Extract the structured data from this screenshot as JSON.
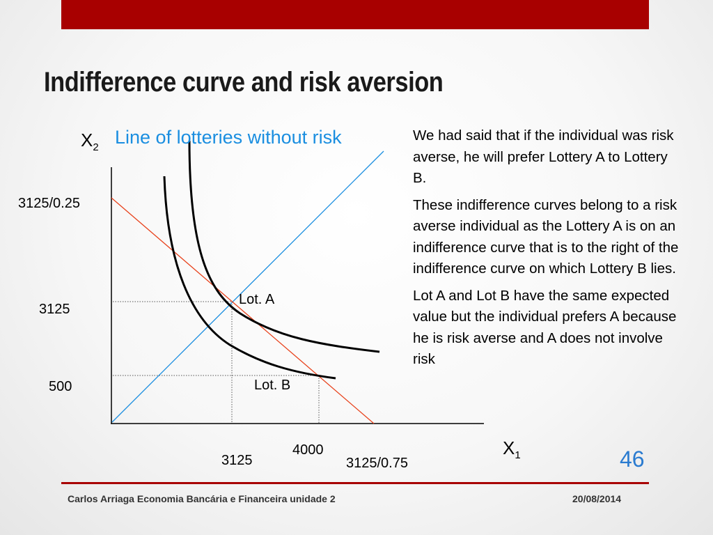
{
  "slide": {
    "title": "Indifference curve and risk aversion",
    "page_number": "46",
    "accent_color": "#a80000"
  },
  "diagram": {
    "y_axis_label": "X",
    "y_axis_subscript": "2",
    "x_axis_label": "X",
    "x_axis_subscript": "1",
    "line_label": "Line of lotteries without risk",
    "y_ticks": {
      "top": "3125/0.25",
      "mid": "3125",
      "low": "500"
    },
    "x_ticks": {
      "a": "3125",
      "b": "4000",
      "c": "3125/0.75"
    },
    "point_a": "Lot. A",
    "point_b": "Lot. B",
    "colors": {
      "certainty_line": "#1a8ee0",
      "budget_line": "#e8421c",
      "curves": "#000000",
      "dotted": "#555555"
    }
  },
  "text": {
    "p1": "We had said that if the individual was risk averse, he will prefer Lottery A to Lottery B.",
    "p2": "These indifference curves belong to a risk averse individual as the Lottery A is on an indifference curve that is to the right of the indifference curve on which Lottery B lies.",
    "p3": "Lot A and Lot B have the same expected value but the individual prefers A because he is risk averse and A does not involve risk"
  },
  "footer": {
    "left": "Carlos Arriaga Economia Bancária e Financeira unidade 2",
    "right": "20/08/2014"
  }
}
